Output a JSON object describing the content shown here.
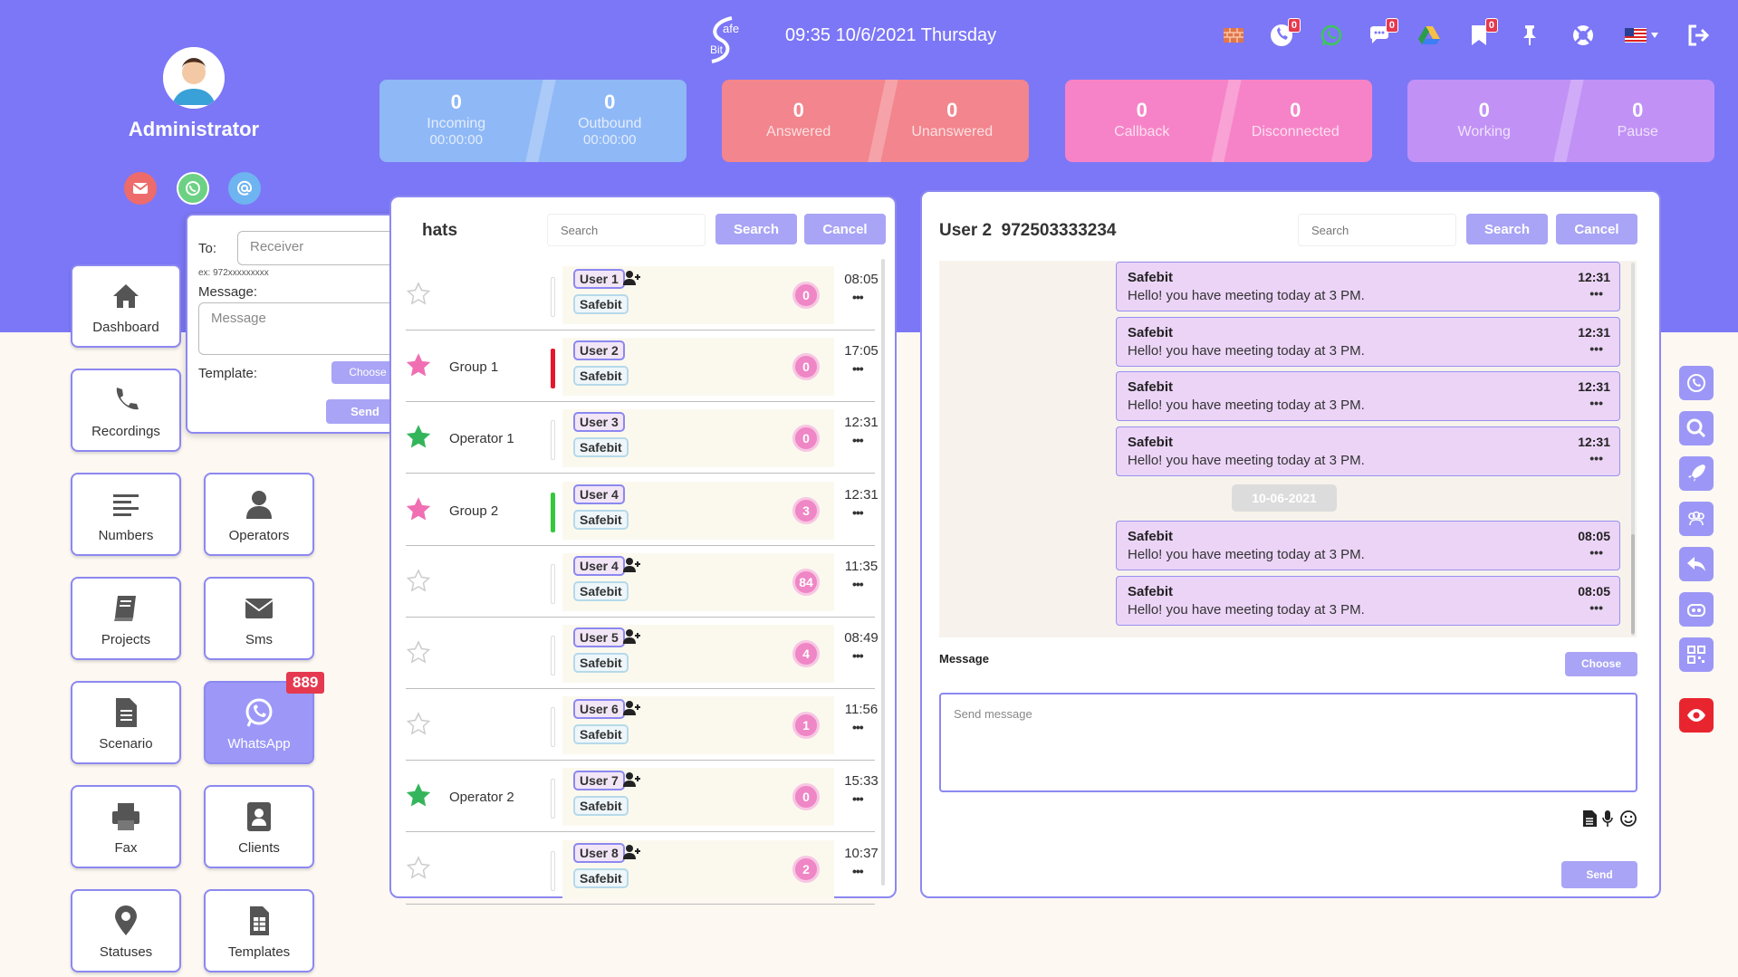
{
  "header": {
    "logo_text_top": "afe",
    "logo_text_bottom": "Bit",
    "datetime": "09:35 10/6/2021 Thursday",
    "icons": [
      {
        "name": "firewall-icon",
        "badge": ""
      },
      {
        "name": "phone-icon",
        "badge": "0"
      },
      {
        "name": "whatsapp-icon",
        "badge": ""
      },
      {
        "name": "chat-icon",
        "badge": "0"
      },
      {
        "name": "drive-icon",
        "badge": ""
      },
      {
        "name": "bookmark-icon",
        "badge": "0"
      },
      {
        "name": "pin-icon",
        "badge": ""
      },
      {
        "name": "support-icon",
        "badge": ""
      },
      {
        "name": "flag-icon",
        "badge": ""
      },
      {
        "name": "logout-icon",
        "badge": ""
      }
    ]
  },
  "profile": {
    "name": "Administrator"
  },
  "stats": [
    {
      "a_value": "0",
      "a_label": "Incoming",
      "a_time": "00:00:00",
      "b_value": "0",
      "b_label": "Outbound",
      "b_time": "00:00:00",
      "color": "#8fb8f6"
    },
    {
      "a_value": "0",
      "a_label": "Answered",
      "a_time": "",
      "b_value": "0",
      "b_label": "Unanswered",
      "b_time": "",
      "color": "#f2858d"
    },
    {
      "a_value": "0",
      "a_label": "Callback",
      "a_time": "",
      "b_value": "0",
      "b_label": "Disconnected",
      "b_time": "",
      "color": "#f683c7"
    },
    {
      "a_value": "0",
      "a_label": "Working",
      "a_time": "",
      "b_value": "0",
      "b_label": "Pause",
      "b_time": "",
      "color": "#c191f6"
    }
  ],
  "nav": {
    "dashboard": "Dashboard",
    "recordings": "Recordings",
    "numbers": "Numbers",
    "operators": "Operators",
    "projects": "Projects",
    "sms": "Sms",
    "scenario": "Scenario",
    "whatsapp": "WhatsApp",
    "whatsapp_badge": "889",
    "fax": "Fax",
    "clients": "Clients",
    "statuses": "Statuses",
    "templates": "Templates"
  },
  "popup": {
    "to_label": "To:",
    "receiver_placeholder": "Receiver",
    "hint": "ex: 972xxxxxxxxx",
    "message_label": "Message:",
    "message_placeholder": "Message",
    "template_label": "Template:",
    "choose": "Choose",
    "send": "Send"
  },
  "chats": {
    "title": "hats",
    "search_placeholder": "Search",
    "search_btn": "Search",
    "cancel_btn": "Cancel",
    "rows": [
      {
        "group": "",
        "user": "User 1",
        "company": "Safebit",
        "count": "0",
        "time": "08:05",
        "star": "empty",
        "bar": "#ffffff",
        "adduser": true
      },
      {
        "group": "Group 1",
        "user": "User 2",
        "company": "Safebit",
        "count": "0",
        "time": "17:05",
        "star": "pink",
        "bar": "#e5182b",
        "adduser": false
      },
      {
        "group": "Operator 1",
        "user": "User 3",
        "company": "Safebit",
        "count": "0",
        "time": "12:31",
        "star": "green",
        "bar": "#ffffff",
        "adduser": false
      },
      {
        "group": "Group 2",
        "user": "User 4",
        "company": "Safebit",
        "count": "3",
        "time": "12:31",
        "star": "pink",
        "bar": "#34c93b",
        "adduser": false
      },
      {
        "group": "",
        "user": "User 4",
        "company": "Safebit",
        "count": "84",
        "time": "11:35",
        "star": "empty",
        "bar": "#ffffff",
        "adduser": true
      },
      {
        "group": "",
        "user": "User 5",
        "company": "Safebit",
        "count": "4",
        "time": "08:49",
        "star": "empty",
        "bar": "#ffffff",
        "adduser": true
      },
      {
        "group": "",
        "user": "User 6",
        "company": "Safebit",
        "count": "1",
        "time": "11:56",
        "star": "empty",
        "bar": "#ffffff",
        "adduser": true
      },
      {
        "group": "Operator 2",
        "user": "User 7",
        "company": "Safebit",
        "count": "0",
        "time": "15:33",
        "star": "green",
        "bar": "#ffffff",
        "adduser": true
      },
      {
        "group": "",
        "user": "User 8",
        "company": "Safebit",
        "count": "2",
        "time": "10:37",
        "star": "empty",
        "bar": "#ffffff",
        "adduser": true
      }
    ]
  },
  "conversation": {
    "title": "User 2  972503333234",
    "search_placeholder": "Search",
    "search_btn": "Search",
    "cancel_btn": "Cancel",
    "date_divider": "10-06-2021",
    "messages": [
      {
        "sender": "Safebit",
        "text": "Hello! you have meeting today at 3 PM.",
        "time": "12:31"
      },
      {
        "sender": "Safebit",
        "text": "Hello! you have meeting today at 3 PM.",
        "time": "12:31"
      },
      {
        "sender": "Safebit",
        "text": "Hello! you have meeting today at 3 PM.",
        "time": "12:31"
      },
      {
        "sender": "Safebit",
        "text": "Hello! you have meeting today at 3 PM.",
        "time": "12:31"
      },
      {
        "sender": "Safebit",
        "text": "Hello! you have meeting today at 3 PM.",
        "time": "08:05"
      },
      {
        "sender": "Safebit",
        "text": "Hello! you have meeting today at 3 PM.",
        "time": "08:05"
      }
    ],
    "message_label": "Message",
    "choose": "Choose",
    "send_placeholder": "Send message",
    "send": "Send"
  },
  "side_icons": [
    "whatsapp-icon",
    "search-icon",
    "rocket-icon",
    "users-icon",
    "reply-icon",
    "bot-icon",
    "qr-icon",
    "eye-icon"
  ]
}
